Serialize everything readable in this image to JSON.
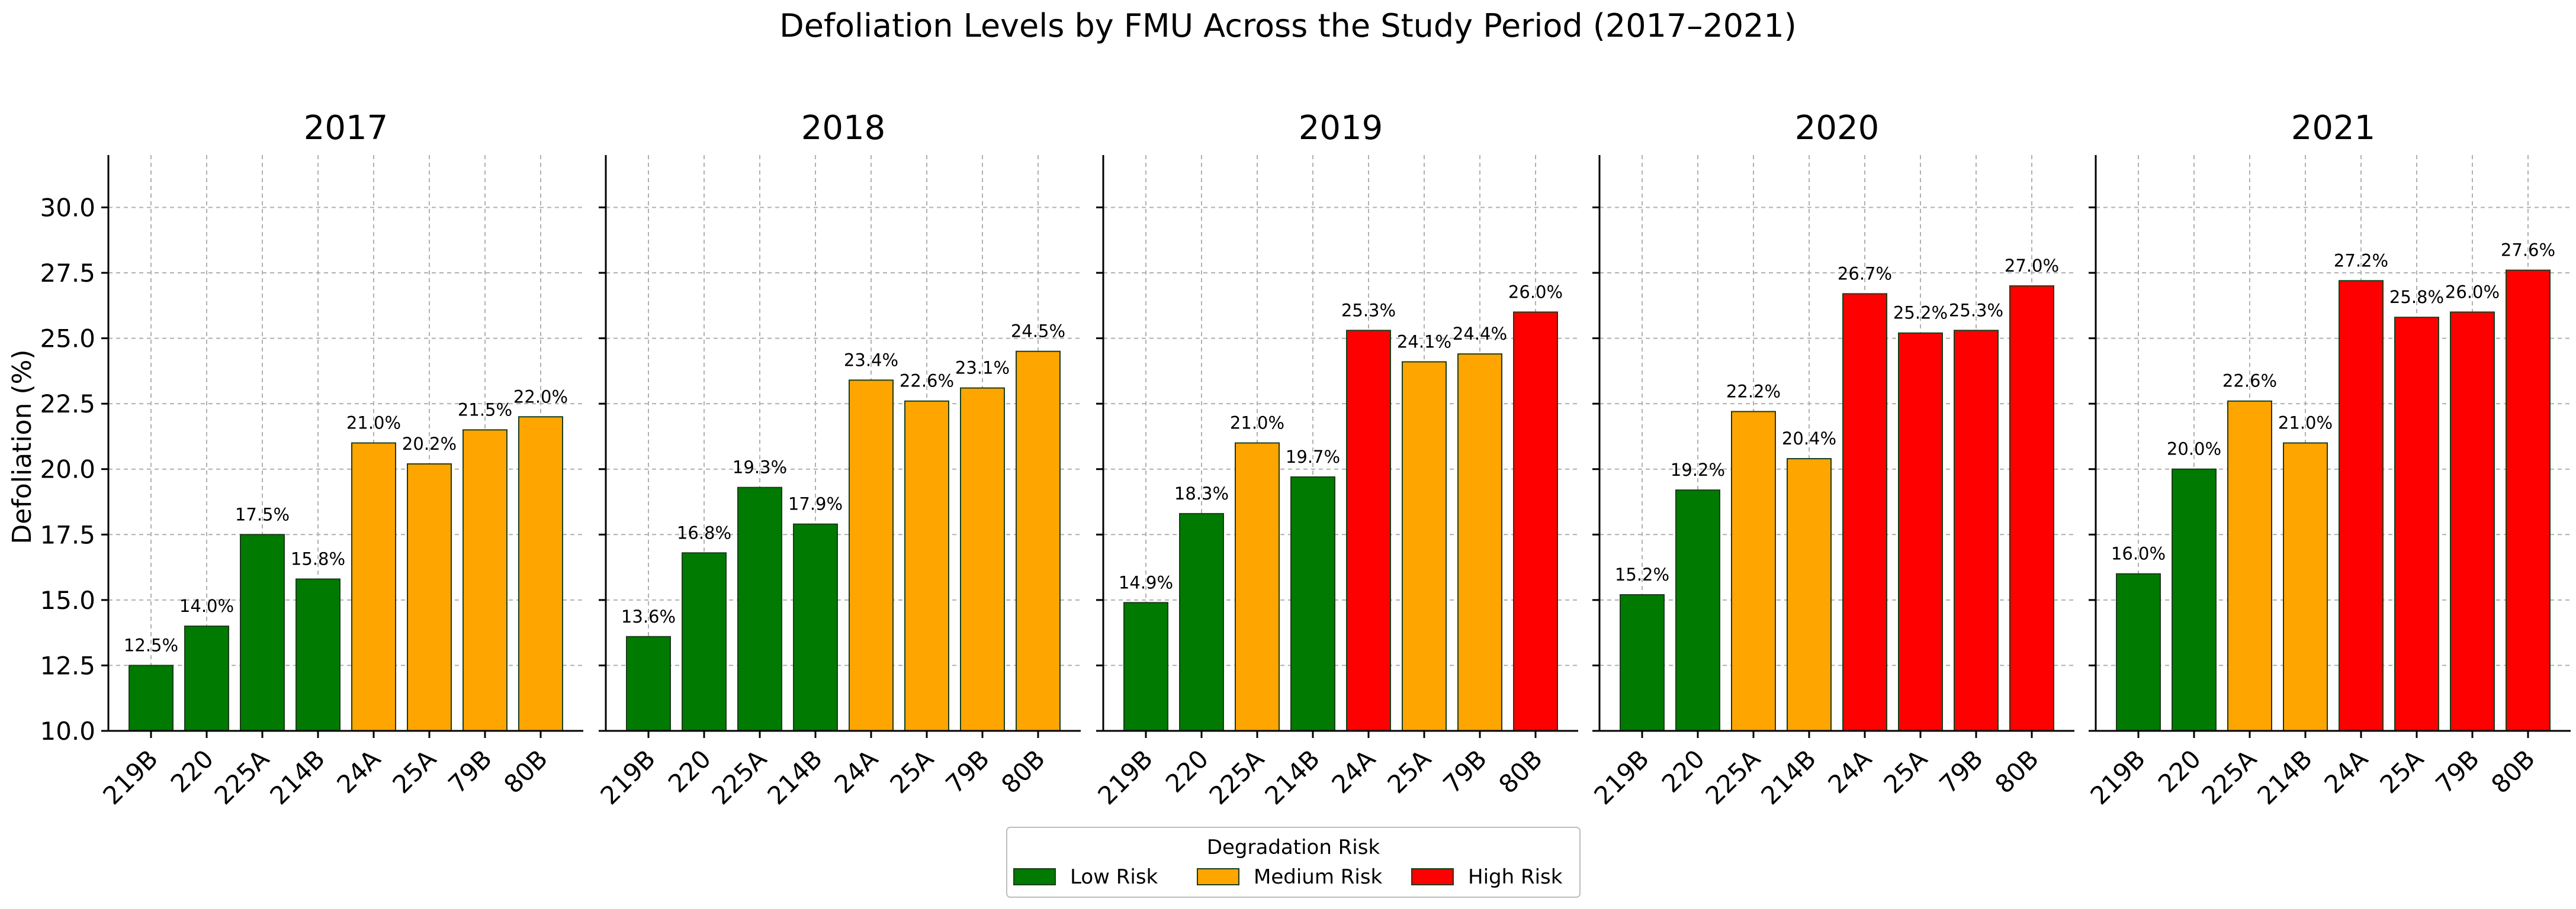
{
  "chart_data": {
    "type": "bar",
    "title": "Defoliation Levels by FMU Across the Study Period (2017–2021)",
    "ylabel": "Defoliation (%)",
    "ylim": [
      10.0,
      32.0
    ],
    "yticks": [
      10.0,
      12.5,
      15.0,
      17.5,
      20.0,
      22.5,
      25.0,
      27.5,
      30.0
    ],
    "ytick_labels": [
      "10.0",
      "12.5",
      "15.0",
      "17.5",
      "20.0",
      "22.5",
      "25.0",
      "27.5",
      "30.0"
    ],
    "grid": true,
    "shared_y": true,
    "categories": [
      "219B",
      "220",
      "225A",
      "214B",
      "24A",
      "25A",
      "79B",
      "80B"
    ],
    "risk_colors": {
      "low": "#007a00",
      "medium": "#ffa500",
      "high": "#ff0000"
    },
    "legend": {
      "title": "Degradation Risk",
      "placement": "bottom-center",
      "entries": [
        {
          "label": "Low Risk",
          "color": "#007a00",
          "key": "low"
        },
        {
          "label": "Medium Risk",
          "color": "#ffa500",
          "key": "medium"
        },
        {
          "label": "High Risk",
          "color": "#ff0000",
          "key": "high"
        }
      ]
    },
    "panels": [
      {
        "title": "2017",
        "values": [
          12.5,
          14.0,
          17.5,
          15.8,
          21.0,
          20.2,
          21.5,
          22.0
        ],
        "labels": [
          "12.5%",
          "14.0%",
          "17.5%",
          "15.8%",
          "21.0%",
          "20.2%",
          "21.5%",
          "22.0%"
        ],
        "risk": [
          "low",
          "low",
          "low",
          "low",
          "medium",
          "medium",
          "medium",
          "medium"
        ]
      },
      {
        "title": "2018",
        "values": [
          13.6,
          16.8,
          19.3,
          17.9,
          23.4,
          22.6,
          23.1,
          24.5
        ],
        "labels": [
          "13.6%",
          "16.8%",
          "19.3%",
          "17.9%",
          "23.4%",
          "22.6%",
          "23.1%",
          "24.5%"
        ],
        "risk": [
          "low",
          "low",
          "low",
          "low",
          "medium",
          "medium",
          "medium",
          "medium"
        ]
      },
      {
        "title": "2019",
        "values": [
          14.9,
          18.3,
          21.0,
          19.7,
          25.3,
          24.1,
          24.4,
          26.0
        ],
        "labels": [
          "14.9%",
          "18.3%",
          "21.0%",
          "19.7%",
          "25.3%",
          "24.1%",
          "24.4%",
          "26.0%"
        ],
        "risk": [
          "low",
          "low",
          "medium",
          "low",
          "high",
          "medium",
          "medium",
          "high"
        ]
      },
      {
        "title": "2020",
        "values": [
          15.2,
          19.2,
          22.2,
          20.4,
          26.7,
          25.2,
          25.3,
          27.0
        ],
        "labels": [
          "15.2%",
          "19.2%",
          "22.2%",
          "20.4%",
          "26.7%",
          "25.2%",
          "25.3%",
          "27.0%"
        ],
        "risk": [
          "low",
          "low",
          "medium",
          "medium",
          "high",
          "high",
          "high",
          "high"
        ]
      },
      {
        "title": "2021",
        "values": [
          16.0,
          20.0,
          22.6,
          21.0,
          27.2,
          25.8,
          26.0,
          27.6
        ],
        "labels": [
          "16.0%",
          "20.0%",
          "22.6%",
          "21.0%",
          "27.2%",
          "25.8%",
          "26.0%",
          "27.6%"
        ],
        "risk": [
          "low",
          "low",
          "medium",
          "medium",
          "high",
          "high",
          "high",
          "high"
        ]
      }
    ]
  }
}
